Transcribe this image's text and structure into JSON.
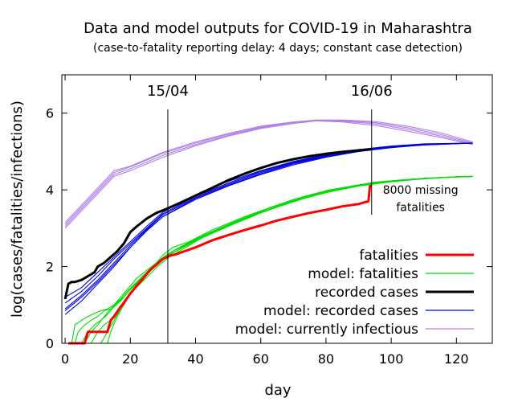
{
  "chart_data": {
    "type": "line",
    "title": "Data and model outputs for COVID-19 in Maharashtra",
    "subtitle": "(case-to-fatality reporting delay: 4 days; constant case detection)",
    "xlabel": "day",
    "ylabel": "log(cases/fatalities/infections)",
    "xlim": [
      -1,
      131
    ],
    "ylim": [
      0,
      7
    ],
    "x_ticks": [
      0,
      20,
      40,
      60,
      80,
      100,
      120
    ],
    "y_ticks": [
      0,
      2,
      4,
      6
    ],
    "grid": false,
    "legend_position": "bottom-right",
    "vertical_markers": [
      {
        "x": 31.5,
        "label": "15/04"
      },
      {
        "x": 94,
        "label": "16/06"
      }
    ],
    "annotation": {
      "x": 109,
      "y_lines": [
        4.0,
        3.55
      ],
      "lines": [
        "8000 missing",
        "fatalities"
      ]
    },
    "series": [
      {
        "name": "fatalities",
        "color": "#ff0000",
        "style": "data",
        "x": [
          1,
          2,
          3,
          5,
          6,
          7,
          10,
          13,
          14,
          15,
          17,
          18,
          20,
          22,
          24,
          26,
          28,
          30,
          32,
          34,
          36,
          40,
          45,
          50,
          55,
          60,
          65,
          70,
          75,
          80,
          85,
          90,
          92,
          93,
          93.5,
          94
        ],
        "y": [
          0,
          0,
          0,
          0,
          0,
          0.3,
          0.3,
          0.3,
          0.6,
          0.7,
          0.95,
          1.05,
          1.3,
          1.5,
          1.7,
          1.9,
          2.05,
          2.2,
          2.28,
          2.32,
          2.38,
          2.5,
          2.68,
          2.82,
          2.95,
          3.07,
          3.2,
          3.3,
          3.4,
          3.48,
          3.57,
          3.63,
          3.68,
          3.7,
          4.1,
          4.1
        ]
      },
      {
        "name": "model: fatalities",
        "color": "#00dd00",
        "style": "model",
        "runs": [
          {
            "x": [
              3,
              4,
              6,
              8,
              10,
              12,
              14,
              16,
              18,
              20,
              22,
              25,
              28,
              30,
              33,
              38,
              45,
              55,
              65,
              75,
              85,
              95,
              105,
              115,
              125
            ],
            "y": [
              0,
              0.3,
              0.48,
              0.6,
              0.7,
              0.85,
              0.9,
              1.1,
              1.3,
              1.5,
              1.7,
              1.9,
              2.1,
              2.3,
              2.5,
              2.65,
              2.95,
              3.3,
              3.6,
              3.85,
              4.05,
              4.2,
              4.27,
              4.32,
              4.35
            ]
          },
          {
            "x": [
              5,
              7,
              9,
              11,
              13,
              15,
              17,
              19,
              21,
              24,
              27,
              30,
              33,
              38,
              45,
              55,
              65,
              75,
              85,
              95,
              105,
              115,
              125
            ],
            "y": [
              0,
              0.3,
              0.48,
              0.6,
              0.75,
              0.95,
              1.1,
              1.3,
              1.5,
              1.75,
              1.95,
              2.2,
              2.4,
              2.6,
              2.9,
              3.25,
              3.55,
              3.82,
              4.03,
              4.18,
              4.26,
              4.32,
              4.35
            ]
          },
          {
            "x": [
              8,
              10,
              12,
              14,
              16,
              18,
              20,
              23,
              26,
              29,
              32,
              36,
              42,
              50,
              60,
              70,
              80,
              90,
              100,
              110,
              120,
              125
            ],
            "y": [
              0,
              0.3,
              0.48,
              0.6,
              0.85,
              1.1,
              1.3,
              1.55,
              1.8,
              2.05,
              2.25,
              2.45,
              2.75,
              3.05,
              3.4,
              3.7,
              3.95,
              4.12,
              4.22,
              4.3,
              4.34,
              4.35
            ]
          },
          {
            "x": [
              11,
              13,
              15,
              17,
              19,
              21,
              24,
              27,
              30,
              34,
              40,
              48,
              58,
              68,
              78,
              88,
              98,
              108,
              118,
              125
            ],
            "y": [
              0,
              0.3,
              0.6,
              0.9,
              1.15,
              1.4,
              1.7,
              1.95,
              2.2,
              2.45,
              2.7,
              3.0,
              3.35,
              3.65,
              3.9,
              4.08,
              4.2,
              4.28,
              4.33,
              4.35
            ]
          },
          {
            "x": [
              13,
              14,
              16,
              18,
              20,
              22,
              25,
              28,
              31,
              35,
              42,
              50,
              60,
              70,
              80,
              90,
              100,
              110,
              120,
              125
            ],
            "y": [
              0,
              0.3,
              0.7,
              1.0,
              1.3,
              1.55,
              1.85,
              2.1,
              2.3,
              2.5,
              2.8,
              3.1,
              3.45,
              3.75,
              3.98,
              4.13,
              4.23,
              4.3,
              4.34,
              4.35
            ]
          },
          {
            "x": [
              2,
              3,
              5,
              7,
              9,
              11,
              13,
              15,
              17,
              19,
              22,
              25,
              28,
              31,
              35,
              42,
              50,
              60,
              70,
              80,
              90,
              100,
              110,
              120,
              125
            ],
            "y": [
              0,
              0.48,
              0.6,
              0.7,
              0.78,
              0.85,
              0.9,
              1.0,
              1.15,
              1.35,
              1.6,
              1.85,
              2.05,
              2.25,
              2.45,
              2.75,
              3.05,
              3.4,
              3.7,
              3.93,
              4.1,
              4.21,
              4.29,
              4.34,
              4.35
            ]
          },
          {
            "x": [
              6,
              8,
              10,
              12,
              14,
              16,
              18,
              20,
              23,
              26,
              29,
              32,
              37,
              44,
              52,
              62,
              72,
              82,
              92,
              102,
              112,
              122,
              125
            ],
            "y": [
              0,
              0.3,
              0.48,
              0.7,
              0.9,
              1.05,
              1.2,
              1.4,
              1.65,
              1.9,
              2.1,
              2.3,
              2.55,
              2.85,
              3.15,
              3.5,
              3.78,
              4.0,
              4.15,
              4.25,
              4.31,
              4.35,
              4.35
            ]
          }
        ]
      },
      {
        "name": "recorded cases",
        "color": "#000000",
        "style": "data",
        "x": [
          0,
          1,
          2,
          3,
          5,
          7,
          9,
          10,
          12,
          14,
          16,
          18,
          20,
          22,
          25,
          28,
          31,
          35,
          40,
          45,
          50,
          55,
          60,
          65,
          70,
          75,
          80,
          85,
          90,
          94
        ],
        "y": [
          1.15,
          1.55,
          1.6,
          1.6,
          1.65,
          1.75,
          1.85,
          2.0,
          2.1,
          2.25,
          2.4,
          2.6,
          2.9,
          3.05,
          3.25,
          3.4,
          3.5,
          3.65,
          3.85,
          4.05,
          4.25,
          4.42,
          4.57,
          4.7,
          4.8,
          4.88,
          4.94,
          4.99,
          5.03,
          5.06
        ]
      },
      {
        "name": "model: recorded cases",
        "color": "#0000dd",
        "style": "model",
        "runs": [
          {
            "x": [
              0,
              5,
              10,
              15,
              20,
              25,
              30,
              40,
              50,
              60,
              70,
              80,
              90,
              100,
              110,
              125
            ],
            "y": [
              0.75,
              1.1,
              1.55,
              2.0,
              2.5,
              2.95,
              3.3,
              3.75,
              4.1,
              4.4,
              4.65,
              4.85,
              5.0,
              5.1,
              5.17,
              5.22
            ]
          },
          {
            "x": [
              0,
              5,
              10,
              15,
              20,
              25,
              30,
              40,
              50,
              60,
              70,
              80,
              90,
              100,
              110,
              125
            ],
            "y": [
              0.9,
              1.25,
              1.65,
              2.1,
              2.55,
              2.98,
              3.35,
              3.8,
              4.15,
              4.45,
              4.7,
              4.88,
              5.02,
              5.12,
              5.18,
              5.22
            ]
          },
          {
            "x": [
              0,
              5,
              10,
              15,
              20,
              25,
              30,
              40,
              50,
              60,
              70,
              80,
              90,
              100,
              110,
              125
            ],
            "y": [
              1.05,
              1.35,
              1.75,
              2.2,
              2.6,
              3.0,
              3.38,
              3.83,
              4.18,
              4.48,
              4.72,
              4.9,
              5.03,
              5.13,
              5.19,
              5.22
            ]
          },
          {
            "x": [
              0,
              5,
              10,
              15,
              20,
              25,
              30,
              40,
              50,
              60,
              70,
              80,
              90,
              100,
              110,
              125
            ],
            "y": [
              1.2,
              1.45,
              1.85,
              2.25,
              2.65,
              3.05,
              3.42,
              3.87,
              4.22,
              4.5,
              4.74,
              4.92,
              5.05,
              5.14,
              5.2,
              5.22
            ]
          },
          {
            "x": [
              0,
              5,
              10,
              15,
              20,
              25,
              30,
              40,
              50,
              60,
              70,
              80,
              90,
              100,
              110,
              125
            ],
            "y": [
              0.85,
              1.2,
              1.6,
              2.05,
              2.5,
              2.93,
              3.3,
              3.78,
              4.12,
              4.42,
              4.68,
              4.86,
              5.0,
              5.11,
              5.17,
              5.22
            ]
          }
        ]
      },
      {
        "name": "model: currently infectious",
        "color": "#b07fe8",
        "style": "model",
        "runs": [
          {
            "x": [
              0,
              5,
              10,
              15,
              20,
              30,
              40,
              50,
              60,
              70,
              77,
              85,
              95,
              105,
              115,
              125
            ],
            "y": [
              3.0,
              3.45,
              3.9,
              4.35,
              4.5,
              4.85,
              5.15,
              5.4,
              5.6,
              5.73,
              5.8,
              5.77,
              5.68,
              5.53,
              5.37,
              5.18
            ]
          },
          {
            "x": [
              0,
              5,
              10,
              15,
              20,
              30,
              40,
              50,
              60,
              70,
              77,
              85,
              95,
              105,
              115,
              125
            ],
            "y": [
              3.05,
              3.5,
              3.95,
              4.4,
              4.55,
              4.9,
              5.18,
              5.42,
              5.62,
              5.75,
              5.8,
              5.79,
              5.72,
              5.58,
              5.41,
              5.2
            ]
          },
          {
            "x": [
              0,
              5,
              10,
              15,
              20,
              30,
              40,
              50,
              60,
              70,
              77,
              85,
              95,
              105,
              115,
              125
            ],
            "y": [
              3.1,
              3.55,
              4.0,
              4.45,
              4.6,
              4.95,
              5.22,
              5.45,
              5.64,
              5.76,
              5.81,
              5.81,
              5.75,
              5.62,
              5.45,
              5.22
            ]
          },
          {
            "x": [
              0,
              5,
              10,
              15,
              20,
              30,
              40,
              50,
              60,
              70,
              77,
              85,
              95,
              105,
              115,
              125
            ],
            "y": [
              3.15,
              3.6,
              4.05,
              4.5,
              4.62,
              4.98,
              5.25,
              5.47,
              5.66,
              5.77,
              5.82,
              5.82,
              5.78,
              5.66,
              5.49,
              5.25
            ]
          }
        ]
      }
    ]
  }
}
